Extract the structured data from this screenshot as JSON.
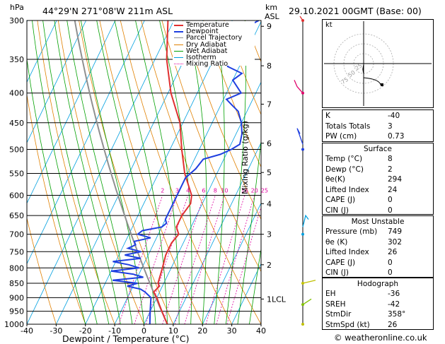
{
  "header": {
    "hpa_label": "hPa",
    "location": "44°29'N  271°08'W  211m  ASL",
    "km_label": "km",
    "asl_label": "ASL",
    "datetime": "29.10.2021  00GMT  (Base: 00)"
  },
  "legend": [
    {
      "label": "Temperature",
      "color": "#e03030"
    },
    {
      "label": "Dewpoint",
      "color": "#1f3fe0"
    },
    {
      "label": "Parcel Trajectory",
      "color": "#909090"
    },
    {
      "label": "Dry Adiabat",
      "color": "#e08000"
    },
    {
      "label": "Wet Adiabat",
      "color": "#00a000"
    },
    {
      "label": "Isotherm",
      "color": "#00a0e0"
    },
    {
      "label": "Mixing Ratio",
      "color": "#e000a0"
    }
  ],
  "colors": {
    "temperature": "#e03030",
    "dewpoint": "#1f3fe0",
    "parcel": "#909090",
    "dry": "#e08000",
    "wet": "#00a000",
    "isotherm": "#00a0e0",
    "mixing": "#e000a0"
  },
  "chart_data": {
    "type": "line",
    "title": "44°29'N  271°08'W  211m  ASL",
    "xlabel": "Dewpoint / Temperature (°C)",
    "ylabel": "hPa",
    "right_ylabel": "Mixing Ratio (g/kg)",
    "xlim": [
      -40,
      40
    ],
    "ylim": [
      1000,
      300
    ],
    "y_log": true,
    "skew_deg_per_decade": 96,
    "pressure_ticks": [
      300,
      350,
      400,
      450,
      500,
      550,
      600,
      650,
      700,
      750,
      800,
      850,
      900,
      950,
      1000
    ],
    "temp_ticks": [
      -40,
      -30,
      -20,
      -10,
      0,
      10,
      20,
      30,
      40
    ],
    "km_ticks": [
      {
        "label": "9",
        "p": 307
      },
      {
        "label": "8",
        "p": 359
      },
      {
        "label": "7",
        "p": 418
      },
      {
        "label": "6",
        "p": 488
      },
      {
        "label": "5",
        "p": 548
      },
      {
        "label": "4",
        "p": 620
      },
      {
        "label": "3",
        "p": 700
      },
      {
        "label": "2",
        "p": 790
      },
      {
        "label": "1LCL",
        "p": 905
      }
    ],
    "mixing_ratio_labels": [
      "2",
      "3",
      "4",
      "6",
      "8",
      "10",
      "16",
      "20",
      "25"
    ],
    "mixing_ratio_values": [
      2,
      3,
      4,
      6,
      8,
      10,
      16,
      20,
      25
    ],
    "series": [
      {
        "name": "Temperature",
        "p": [
          1000,
          975,
          950,
          925,
          900,
          880,
          860,
          850,
          800,
          760,
          725,
          700,
          680,
          650,
          620,
          600,
          550,
          500,
          450,
          400,
          350,
          300
        ],
        "t": [
          8,
          6,
          4,
          2,
          0,
          -2,
          -1,
          -2,
          -3,
          -4,
          -4,
          -3,
          -5,
          -5,
          -4,
          -5,
          -11,
          -16,
          -21,
          -29,
          -36,
          -42
        ]
      },
      {
        "name": "Dewpoint",
        "p": [
          1000,
          975,
          950,
          925,
          900,
          880,
          870,
          860,
          850,
          840,
          830,
          820,
          810,
          800,
          790,
          780,
          770,
          760,
          750,
          740,
          730,
          720,
          710,
          700,
          690,
          680,
          670,
          660,
          650,
          630,
          600,
          560,
          540,
          520,
          510,
          500,
          490,
          470,
          450,
          430,
          420,
          410,
          400,
          380,
          370,
          360,
          340,
          330,
          320,
          310,
          300
        ],
        "t": [
          2,
          1,
          0,
          -1,
          -2,
          -5,
          -7,
          -12,
          -9,
          -18,
          -8,
          -12,
          -20,
          -11,
          -15,
          -21,
          -12,
          -18,
          -13,
          -18,
          -16,
          -17,
          -12,
          -17,
          -16,
          -10,
          -9,
          -10,
          -10,
          -10,
          -10,
          -10,
          -8,
          -7,
          -2,
          1,
          3,
          2,
          0,
          -3,
          -6,
          -9,
          -5,
          -10,
          -8,
          -14,
          -15,
          -18,
          -16,
          -15,
          -11
        ]
      }
    ]
  },
  "indices": [
    {
      "label": "K",
      "value": "-40"
    },
    {
      "label": "Totals Totals",
      "value": "3"
    },
    {
      "label": "PW (cm)",
      "value": "0.73"
    }
  ],
  "surface": {
    "title": "Surface",
    "rows": [
      {
        "label": "Temp (°C)",
        "value": "8"
      },
      {
        "label": "Dewp (°C)",
        "value": "2"
      },
      {
        "label": "θe(K)",
        "value": "294"
      },
      {
        "label": "Lifted Index",
        "value": "24"
      },
      {
        "label": "CAPE (J)",
        "value": "0"
      },
      {
        "label": "CIN (J)",
        "value": "0"
      }
    ]
  },
  "most_unstable": {
    "title": "Most Unstable",
    "rows": [
      {
        "label": "Pressure (mb)",
        "value": "749"
      },
      {
        "label": "θe (K)",
        "value": "302"
      },
      {
        "label": "Lifted Index",
        "value": "26"
      },
      {
        "label": "CAPE (J)",
        "value": "0"
      },
      {
        "label": "CIN (J)",
        "value": "0"
      }
    ]
  },
  "hodograph": {
    "title": "Hodograph",
    "rows": [
      {
        "label": "EH",
        "value": "-36"
      },
      {
        "label": "SREH",
        "value": "-42"
      },
      {
        "label": "StmDir",
        "value": "358°"
      },
      {
        "label": "StmSpd (kt)",
        "value": "26"
      }
    ],
    "kt_label": "kt",
    "ring_labels": [
      "75",
      "50",
      "25"
    ]
  },
  "footer": {
    "credit": "© weatheronline.co.uk"
  }
}
